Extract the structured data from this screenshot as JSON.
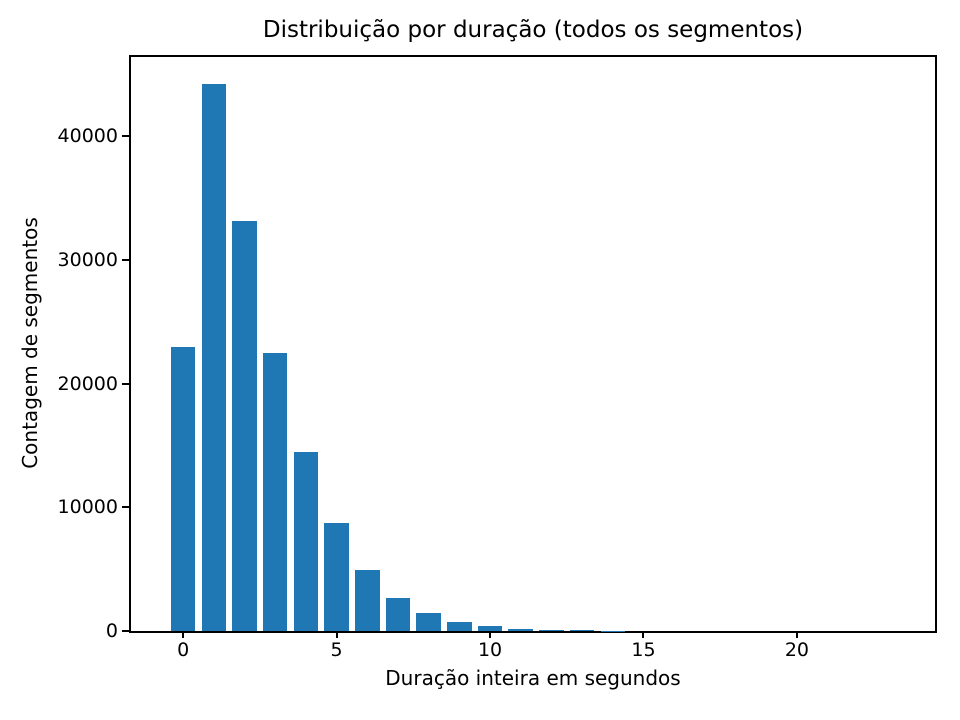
{
  "page": {
    "background_color": "#ffffff"
  },
  "chart_data": {
    "type": "bar",
    "title": "Distribuição por duração (todos os segmentos)",
    "xlabel": "Duração inteira em segundos",
    "ylabel": "Contagem de segmentos",
    "x": [
      0,
      1,
      2,
      3,
      4,
      5,
      6,
      7,
      8,
      9,
      10,
      11,
      12,
      13,
      14
    ],
    "values": [
      23000,
      44200,
      33150,
      22500,
      14500,
      8700,
      4900,
      2700,
      1470,
      740,
      420,
      150,
      80,
      55,
      40
    ],
    "bar_width": 0.8,
    "bar_color": "#1f77b4",
    "axis_color": "#000000",
    "xlim": [
      -1.7,
      24.5
    ],
    "ylim": [
      0,
      46410
    ],
    "xticks": [
      0,
      5,
      10,
      15,
      20
    ],
    "yticks": [
      0,
      10000,
      20000,
      30000,
      40000
    ],
    "grid": false,
    "legend_position": "none"
  }
}
